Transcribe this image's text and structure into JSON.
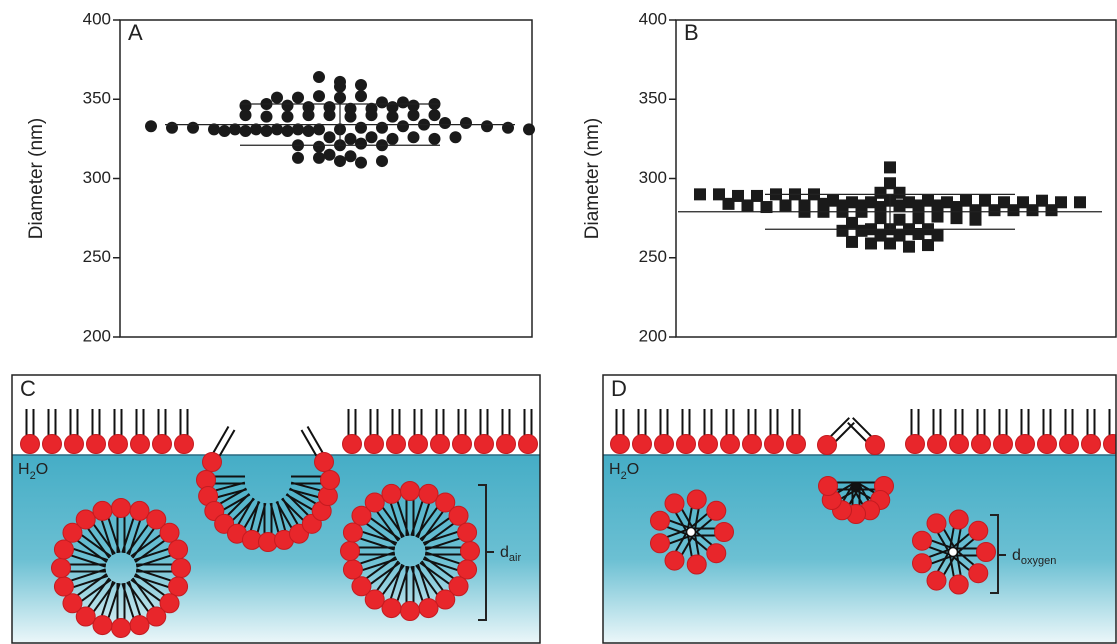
{
  "chart_data": [
    {
      "type": "scatter",
      "panel_label": "A",
      "y_label": "Diameter (nm)",
      "marker": "circle",
      "color": "#1a1a1a",
      "ylim": [
        200,
        400
      ],
      "yticks": [
        200,
        250,
        300,
        350,
        400
      ],
      "mean": 334,
      "sd": 13,
      "values": [
        364,
        361,
        358,
        359,
        351,
        351,
        352,
        351,
        352,
        348,
        346,
        347,
        346,
        345,
        345,
        344,
        344,
        345,
        346,
        347,
        348,
        340,
        339,
        339,
        340,
        340,
        339,
        340,
        339,
        340,
        340,
        333,
        332,
        332,
        331,
        331,
        330,
        330,
        330,
        331,
        331,
        330,
        331,
        331,
        331,
        332,
        332,
        333,
        334,
        335,
        335,
        333,
        332,
        331,
        330,
        326,
        325,
        326,
        325,
        326,
        325,
        326,
        321,
        320,
        321,
        322,
        321,
        315,
        314,
        313,
        313,
        311,
        310,
        311
      ]
    },
    {
      "type": "scatter",
      "panel_label": "B",
      "y_label": "Diameter (nm)",
      "marker": "square",
      "color": "#1a1a1a",
      "ylim": [
        200,
        400
      ],
      "yticks": [
        200,
        250,
        300,
        350,
        400
      ],
      "mean": 279,
      "sd": 11,
      "values": [
        307,
        297,
        290,
        290,
        289,
        289,
        290,
        290,
        291,
        290,
        291,
        286,
        285,
        285,
        286,
        285,
        286,
        285,
        286,
        286,
        285,
        285,
        286,
        285,
        284,
        285,
        283,
        282,
        283,
        283,
        284,
        283,
        283,
        282,
        283,
        283,
        283,
        282,
        280,
        279,
        280,
        279,
        280,
        279,
        280,
        279,
        280,
        275,
        274,
        275,
        276,
        275,
        274,
        272,
        268,
        267,
        268,
        267,
        268,
        268,
        264,
        264,
        265,
        264,
        260,
        259,
        259,
        257,
        258
      ]
    }
  ],
  "diagrams": [
    {
      "panel_label": "C",
      "water_label": {
        "main": "H",
        "sub": "2",
        "end": "O"
      },
      "dimension_label": {
        "symbol": "d",
        "subscript": "air"
      }
    },
    {
      "panel_label": "D",
      "water_label": {
        "main": "H",
        "sub": "2",
        "end": "O"
      },
      "dimension_label": {
        "symbol": "d",
        "subscript": "oxygen"
      }
    }
  ]
}
